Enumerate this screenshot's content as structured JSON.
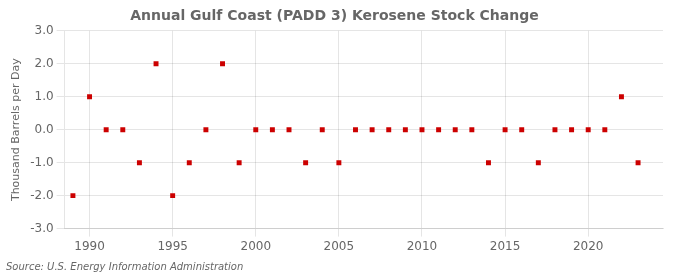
{
  "chart_data": {
    "type": "scatter",
    "title": "Annual Gulf Coast (PADD 3) Kerosene Stock Change",
    "ylabel": "Thousand Barrels per Day",
    "annotation": "Source: U.S. Energy Information Administration",
    "x": [
      1989,
      1990,
      1991,
      1992,
      1993,
      1994,
      1995,
      1996,
      1997,
      1998,
      1999,
      2000,
      2001,
      2002,
      2003,
      2004,
      2005,
      2006,
      2007,
      2008,
      2009,
      2010,
      2011,
      2012,
      2013,
      2014,
      2015,
      2016,
      2017,
      2018,
      2019,
      2020,
      2021,
      2022,
      2023
    ],
    "values": [
      -2.0,
      1.0,
      0.0,
      0.0,
      -1.0,
      2.0,
      -2.0,
      -1.0,
      0.0,
      2.0,
      -1.0,
      0.0,
      0.0,
      0.0,
      -1.0,
      0.0,
      -1.0,
      0.0,
      0.0,
      0.0,
      0.0,
      0.0,
      0.0,
      0.0,
      0.0,
      -1.0,
      0.0,
      0.0,
      -1.0,
      0.0,
      0.0,
      0.0,
      0.0,
      1.0,
      -1.0
    ],
    "color": "#cc0000",
    "marker": "square",
    "xlim": [
      1988.5,
      2024.5
    ],
    "xticks": [
      1990,
      1995,
      2000,
      2005,
      2010,
      2015,
      2020
    ],
    "ylim": [
      -3.0,
      3.0
    ],
    "yticks": [
      {
        "value": -3.0,
        "label": "-3.0"
      },
      {
        "value": -2.0,
        "label": "-2.0"
      },
      {
        "value": -1.0,
        "label": "-1.0"
      },
      {
        "value": 0.0,
        "label": "0.0"
      },
      {
        "value": 1.0,
        "label": "1.0"
      },
      {
        "value": 2.0,
        "label": "2.0"
      },
      {
        "value": 3.0,
        "label": "3.0"
      }
    ],
    "grid": true
  }
}
